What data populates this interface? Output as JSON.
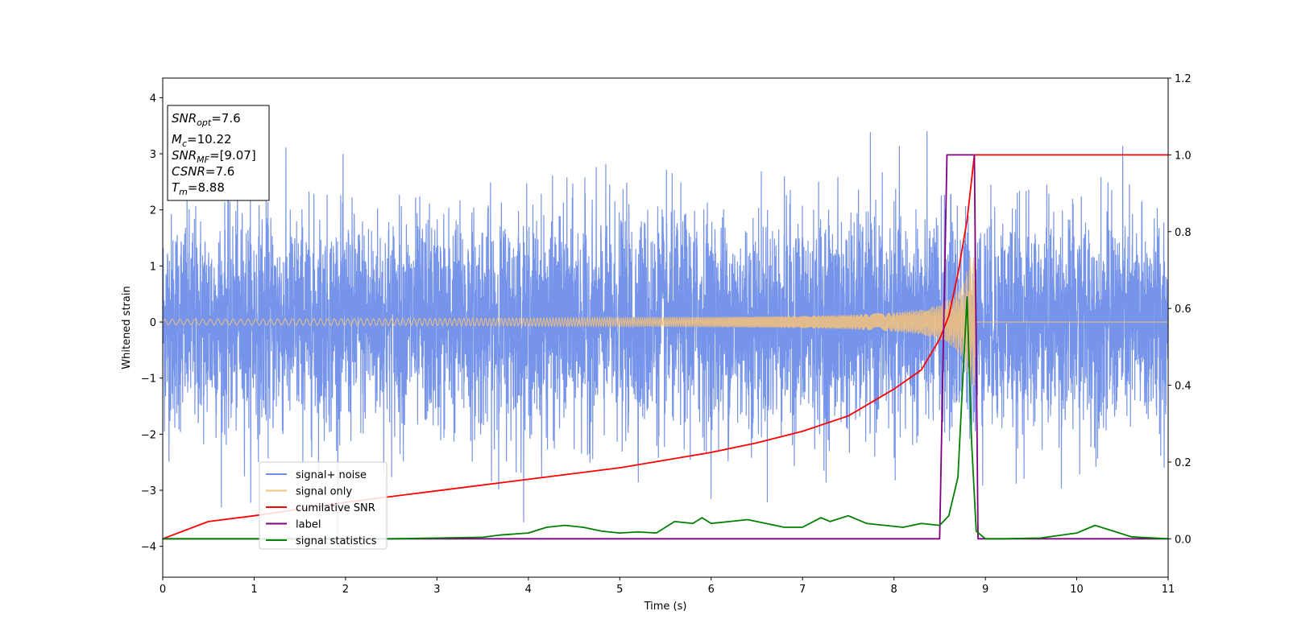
{
  "chart_data": {
    "type": "line",
    "xlabel": "Time (s)",
    "ylabel": "Whitened strain",
    "xlim": [
      0,
      11
    ],
    "ylim": [
      -4.55,
      4.35
    ],
    "ylim_right": [
      -0.1,
      1.2
    ],
    "x_ticks": [
      "0",
      "1",
      "2",
      "3",
      "4",
      "5",
      "6",
      "7",
      "8",
      "9",
      "10",
      "11"
    ],
    "y_ticks": [
      "4",
      "3",
      "2",
      "1",
      "0",
      "−1",
      "−2",
      "−3",
      "−4"
    ],
    "y_ticks_right": [
      "1.2",
      "1.0",
      "0.8",
      "0.6",
      "0.4",
      "0.2",
      "0.0"
    ],
    "info_box": {
      "snr_opt": {
        "base": "SNR",
        "sub": "opt",
        "value": "=7.6"
      },
      "mc": {
        "base": "M",
        "sub": "c",
        "value": "=10.22"
      },
      "snr_mf": {
        "base": "SNR",
        "sub": "MF",
        "value": "=[9.07]"
      },
      "csnr": {
        "base": "CSNR",
        "sub": "",
        "value": "=7.6"
      },
      "tm": {
        "base": "T",
        "sub": "m",
        "value": "=8.88"
      }
    },
    "legend": {
      "position": "lower-left",
      "entries": [
        {
          "label": "signal+ noise",
          "color": "#6f8ee8"
        },
        {
          "label": "signal only",
          "color": "#f5c27a"
        },
        {
          "label": "cumilative SNR",
          "color": "#ff0000"
        },
        {
          "label": "label",
          "color": "#800080"
        },
        {
          "label": "signal statistics",
          "color": "#008000"
        }
      ]
    },
    "series": [
      {
        "name": "signal+ noise",
        "axis": "left",
        "color": "#6f8ee8",
        "description_stats": {
          "min": -4.15,
          "max": 3.95,
          "typical_range": [
            -2.3,
            2.4
          ]
        }
      },
      {
        "name": "signal only",
        "axis": "left",
        "color": "#f5c27a",
        "envelope_x": [
          0,
          2,
          4,
          5,
          6,
          7,
          7.5,
          8,
          8.3,
          8.5,
          8.65,
          8.75,
          8.82,
          8.86,
          8.88,
          8.9,
          11
        ],
        "envelope_y": [
          0.05,
          0.06,
          0.07,
          0.08,
          0.09,
          0.11,
          0.13,
          0.17,
          0.22,
          0.3,
          0.45,
          0.65,
          1.05,
          1.5,
          1.0,
          0.0,
          0.0
        ]
      },
      {
        "name": "cumilative SNR",
        "axis": "right",
        "color": "#ff0000",
        "x": [
          0,
          0.5,
          1,
          2,
          3,
          4,
          5,
          6,
          6.5,
          7,
          7.5,
          8,
          8.3,
          8.5,
          8.6,
          8.7,
          8.8,
          8.88,
          11
        ],
        "y": [
          0.0,
          0.045,
          0.06,
          0.095,
          0.125,
          0.155,
          0.185,
          0.225,
          0.25,
          0.28,
          0.32,
          0.39,
          0.44,
          0.52,
          0.58,
          0.69,
          0.83,
          1.0,
          1.0
        ]
      },
      {
        "name": "label",
        "axis": "right",
        "color": "#800080",
        "x": [
          0,
          8.5,
          8.58,
          8.88,
          8.92,
          11
        ],
        "y": [
          0.0,
          0.0,
          1.0,
          1.0,
          0.0,
          0.0
        ]
      },
      {
        "name": "signal statistics",
        "axis": "right",
        "color": "#008000",
        "x": [
          0,
          1,
          2,
          2.5,
          3,
          3.5,
          3.7,
          4,
          4.2,
          4.4,
          4.6,
          4.8,
          5.0,
          5.2,
          5.4,
          5.6,
          5.8,
          5.9,
          6.0,
          6.2,
          6.4,
          6.6,
          6.8,
          7.0,
          7.2,
          7.3,
          7.5,
          7.7,
          7.9,
          8.1,
          8.3,
          8.5,
          8.6,
          8.7,
          8.75,
          8.8,
          8.85,
          8.9,
          9.0,
          9.2,
          9.6,
          10.0,
          10.1,
          10.2,
          10.4,
          10.6,
          11
        ],
        "y": [
          0.0,
          0.0,
          0.0,
          0.0,
          0.002,
          0.004,
          0.01,
          0.015,
          0.03,
          0.035,
          0.03,
          0.02,
          0.015,
          0.018,
          0.015,
          0.045,
          0.04,
          0.055,
          0.04,
          0.045,
          0.05,
          0.04,
          0.03,
          0.03,
          0.055,
          0.045,
          0.06,
          0.04,
          0.035,
          0.03,
          0.04,
          0.035,
          0.06,
          0.16,
          0.4,
          0.63,
          0.25,
          0.02,
          0.0,
          0.0,
          0.002,
          0.015,
          0.025,
          0.035,
          0.02,
          0.005,
          0.0
        ]
      }
    ]
  }
}
